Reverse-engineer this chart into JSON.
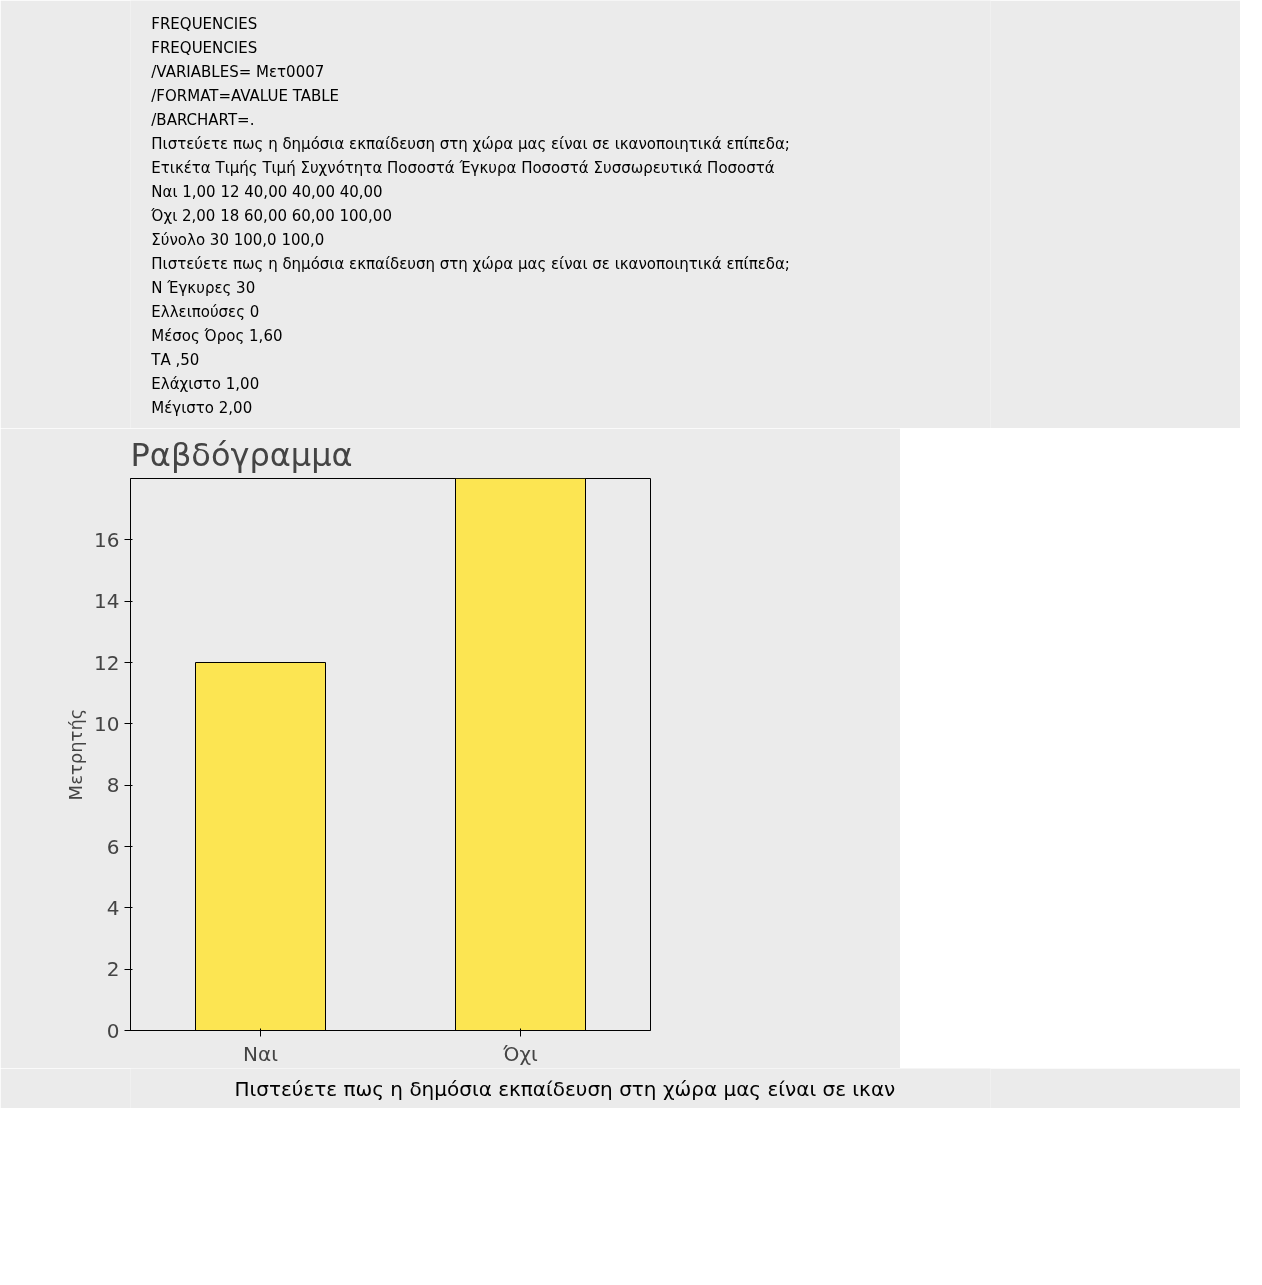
{
  "chart_data": {
    "type": "bar",
    "title": "Ραβδόγραμμα",
    "ylabel": "Μετρητής",
    "categories": [
      "Ναι",
      "Όχι"
    ],
    "values": [
      12,
      18
    ],
    "color": "#fce552",
    "ylim": [
      0,
      18
    ],
    "yticks": [
      0,
      2,
      4,
      6,
      8,
      10,
      12,
      14,
      16
    ],
    "grid": false,
    "annotations": [
      "FREQUENCIES",
      "FREQUENCIES",
      "/VARIABLES= Μετ0007",
      "/FORMAT=AVALUE TABLE",
      "/BARCHART=.",
      "Πιστεύετε πως η δημόσια εκπαίδευση στη χώρα μας είναι σε ικανοποιητικά επίπεδα;",
      "Ετικέτα Τιμής   Τιμή   Συχνότητα   Ποσοστά   Έγκυρα Ποσοστά   Συσσωρευτικά Ποσοστά",
      "Ναι   1,00   12   40,00   40,00   40,00",
      "Όχι   2,00   18   60,00   60,00   100,00",
      "Σύνολο   30   100,0   100,0",
      "Πιστεύετε πως η δημόσια εκπαίδευση στη χώρα μας είναι σε ικανοποιητικά επίπεδα;",
      "N   Έγκυρες   30",
      "Ελλειπούσες   0",
      "Μέσος Όρος   1,60",
      "ΤΑ   ,50",
      "Ελάχιστο   1,00",
      "Μέγιστο   2,00",
      "Πιστεύετε πως η δημόσια εκπαίδευση στη χώρα μας είναι σε ικαν"
    ]
  }
}
